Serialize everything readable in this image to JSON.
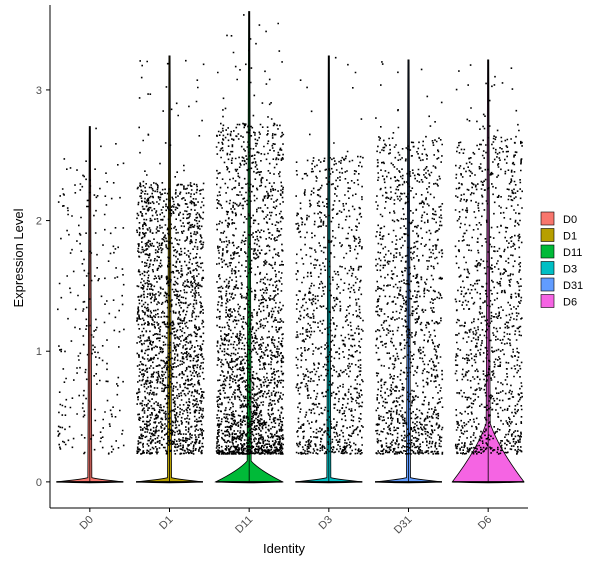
{
  "chart_data": {
    "type": "violin",
    "xlabel": "Identity",
    "ylabel": "Expression Level",
    "ylim": [
      -0.2,
      3.65
    ],
    "yticks": [
      0,
      1,
      2,
      3
    ],
    "grid": false,
    "legend_position": "right",
    "categories": [
      "D0",
      "D1",
      "D11",
      "D3",
      "D31",
      "D6"
    ],
    "colors": {
      "D0": "#F8766D",
      "D1": "#B79F00",
      "D11": "#00BA38",
      "D3": "#00BFC4",
      "D31": "#619CFF",
      "D6": "#F564E3"
    },
    "groups": [
      {
        "name": "D0",
        "max": 2.72,
        "n_points": 260,
        "low_bias": 0.55,
        "cap": 2.5,
        "violin_peak": 0.02,
        "violin_halfwidth": 0.42
      },
      {
        "name": "D1",
        "max": 3.26,
        "n_points": 2000,
        "low_bias": 0.45,
        "cap": 2.3,
        "violin_peak": 0.02,
        "violin_halfwidth": 0.42
      },
      {
        "name": "D11",
        "max": 3.6,
        "n_points": 2200,
        "low_bias": 1.6,
        "cap": 2.75,
        "violin_peak": 0.1,
        "violin_halfwidth": 0.42
      },
      {
        "name": "D3",
        "max": 3.26,
        "n_points": 1050,
        "low_bias": 0.85,
        "cap": 2.5,
        "violin_peak": 0.02,
        "violin_halfwidth": 0.42
      },
      {
        "name": "D31",
        "max": 3.23,
        "n_points": 1300,
        "low_bias": 0.8,
        "cap": 2.65,
        "violin_peak": 0.02,
        "violin_halfwidth": 0.42
      },
      {
        "name": "D6",
        "max": 3.23,
        "n_points": 1150,
        "low_bias": 0.7,
        "cap": 2.65,
        "violin_peak": 0.28,
        "violin_halfwidth": 0.45
      }
    ]
  }
}
